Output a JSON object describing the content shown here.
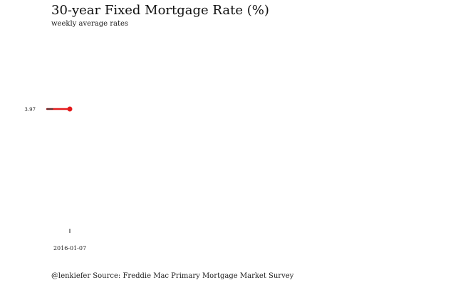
{
  "chart_data": {
    "type": "line",
    "title": "30-year Fixed Mortgage Rate (%)",
    "subtitle": "weekly average rates",
    "caption": "@lenkiefer Source: Freddie Mac Primary Mortgage Market Survey",
    "xlabel": "",
    "ylabel": "",
    "x": [
      "2016-01-07"
    ],
    "series": [
      {
        "values": [
          3.97
        ],
        "color": "#e41a1c"
      }
    ],
    "endpoint_label": "3.97",
    "x_tick_labels": [
      "2016-01-07"
    ],
    "grid": false,
    "legend": "none"
  }
}
